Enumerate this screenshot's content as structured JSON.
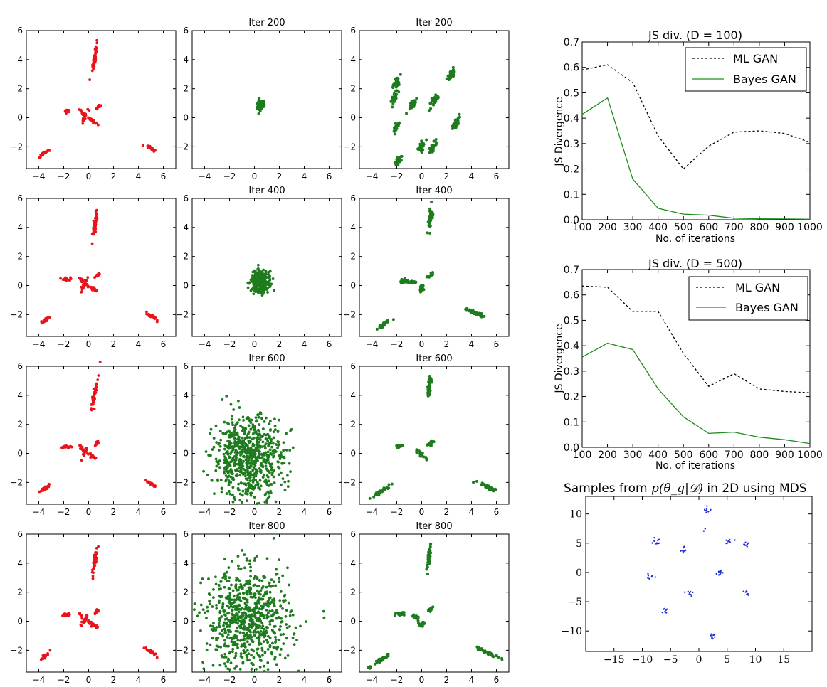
{
  "colors": {
    "data": "#e8141c",
    "gan": "#1e7b1e",
    "ml_line": "#000000",
    "bayes_line": "#1e8c1e",
    "mds": "#1f2fd6"
  },
  "grid": {
    "row_titles": [
      "Iter 200",
      "Iter 400",
      "Iter 600",
      "Iter 800"
    ],
    "x_ticks": [
      "−4",
      "−2",
      "0",
      "2",
      "4",
      "6"
    ],
    "y_ticks": [
      "6",
      "4",
      "2",
      "0",
      "−2"
    ]
  },
  "chart_data": [
    {
      "type": "scatter",
      "panel": "true-data-and-samples-grid",
      "xlim": [
        -5,
        7
      ],
      "ylim": [
        -3.5,
        6
      ],
      "data_clusters": [
        [
          0.5,
          4.2
        ],
        [
          -0.3,
          0.1
        ],
        [
          0.3,
          -0.1
        ],
        [
          -1.8,
          0.45
        ],
        [
          0.7,
          0.7
        ],
        [
          -3.5,
          -2.4
        ],
        [
          5.0,
          -2.1
        ]
      ],
      "gan_spread": {
        "ml_gan": [
          {
            "title": "Iter 200",
            "center": [
              0.5,
              0.9
            ],
            "radius": 0.35
          },
          {
            "title": "Iter 400",
            "center": [
              0.4,
              0.3
            ],
            "radius": 0.9
          },
          {
            "title": "Iter 600",
            "center": [
              -0.5,
              -0.3
            ],
            "radius": 3.2
          },
          {
            "title": "Iter 800",
            "center": [
              -0.5,
              0.1
            ],
            "radius": 4.2
          }
        ],
        "bayes_gan_iter200_clusters": [
          [
            -2.0,
            2.4
          ],
          [
            -2.2,
            1.4
          ],
          [
            -2.0,
            -0.6
          ],
          [
            -1.9,
            -3.0
          ],
          [
            -0.7,
            1.0
          ],
          [
            0.0,
            -2.0
          ],
          [
            1.0,
            1.2
          ],
          [
            0.9,
            -2.0
          ],
          [
            2.4,
            3.0
          ],
          [
            2.8,
            -0.3
          ]
        ]
      }
    },
    {
      "type": "line",
      "title": "JS div. (D = 100)",
      "xlabel": "No. of iterations",
      "ylabel": "JS Divergence",
      "x": [
        100,
        200,
        300,
        400,
        500,
        600,
        700,
        800,
        900,
        1000
      ],
      "x_tick_labels": [
        "100",
        "200",
        "300",
        "400",
        "500",
        "600",
        "700",
        "800",
        "900",
        "1000"
      ],
      "y_tick_labels": [
        "0.0",
        "0.1",
        "0.2",
        "0.3",
        "0.4",
        "0.5",
        "0.6",
        "0.7"
      ],
      "xlim": [
        100,
        1000
      ],
      "ylim": [
        0,
        0.7
      ],
      "series": [
        {
          "name": "ML GAN",
          "style": "dashed",
          "values": [
            0.59,
            0.61,
            0.54,
            0.33,
            0.2,
            0.29,
            0.345,
            0.35,
            0.34,
            0.305
          ]
        },
        {
          "name": "Bayes GAN",
          "style": "solid",
          "values": [
            0.415,
            0.48,
            0.16,
            0.045,
            0.022,
            0.018,
            0.006,
            0.004,
            0.003,
            0.002
          ]
        }
      ],
      "legend": "top-right"
    },
    {
      "type": "line",
      "title": "JS div. (D = 500)",
      "xlabel": "No. of iterations",
      "ylabel": "JS Divergence",
      "x": [
        100,
        200,
        300,
        400,
        500,
        600,
        700,
        800,
        900,
        1000
      ],
      "x_tick_labels": [
        "100",
        "200",
        "300",
        "400",
        "500",
        "600",
        "700",
        "800",
        "900",
        "1000"
      ],
      "y_tick_labels": [
        "0.0",
        "0.1",
        "0.2",
        "0.3",
        "0.4",
        "0.5",
        "0.6",
        "0.7"
      ],
      "xlim": [
        100,
        1000
      ],
      "ylim": [
        0,
        0.7
      ],
      "series": [
        {
          "name": "ML GAN",
          "style": "dashed",
          "values": [
            0.635,
            0.63,
            0.535,
            0.535,
            0.37,
            0.24,
            0.29,
            0.23,
            0.22,
            0.215
          ]
        },
        {
          "name": "Bayes GAN",
          "style": "solid",
          "values": [
            0.355,
            0.41,
            0.385,
            0.23,
            0.12,
            0.055,
            0.06,
            0.04,
            0.03,
            0.015
          ]
        }
      ],
      "legend": "top-right"
    },
    {
      "type": "scatter",
      "title_prefix": "Samples from ",
      "title_math": "p(θ_g|𝒟)",
      "title_suffix": " in 2D using MDS",
      "xlim": [
        -20,
        20
      ],
      "ylim": [
        -13.5,
        13
      ],
      "x_ticks": [
        -15,
        -10,
        -5,
        0,
        5,
        10,
        15
      ],
      "y_ticks": [
        10,
        5,
        0,
        -5,
        -10
      ],
      "x_tick_labels": [
        "−15",
        "−10",
        "−5",
        "0",
        "5",
        "10",
        "15"
      ],
      "y_tick_labels": [
        "10",
        "5",
        "0",
        "−5",
        "−10"
      ],
      "clusters": [
        [
          1.2,
          10.8
        ],
        [
          -7.6,
          5.5
        ],
        [
          -2.8,
          3.9
        ],
        [
          8.2,
          4.8
        ],
        [
          5.2,
          5.1
        ],
        [
          3.6,
          0.2
        ],
        [
          -8.6,
          -0.8
        ],
        [
          -1.8,
          -3.6
        ],
        [
          8.4,
          -3.6
        ],
        [
          -6.2,
          -6.6
        ],
        [
          2.4,
          -10.8
        ],
        [
          0.9,
          7.4
        ],
        [
          -7.0,
          4.2
        ]
      ]
    }
  ]
}
